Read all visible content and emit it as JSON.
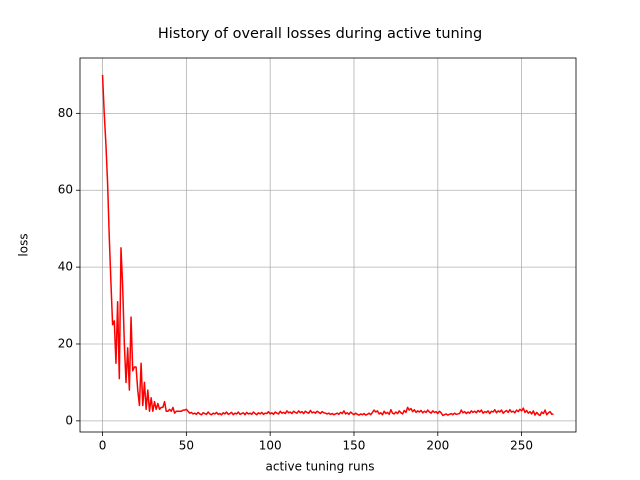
{
  "chart_data": {
    "type": "line",
    "title": "History of overall losses during active tuning",
    "xlabel": "active tuning runs",
    "ylabel": "loss",
    "grid": true,
    "color": "red",
    "xlim": [
      -13.45,
      282.45
    ],
    "xticks": [
      0,
      50,
      100,
      150,
      200,
      250
    ],
    "ylim": [
      -2.9,
      94.4
    ],
    "yticks": [
      0,
      20,
      40,
      60,
      80
    ],
    "x": [
      0,
      1,
      2,
      3,
      4,
      5,
      6,
      7,
      8,
      9,
      10,
      11,
      12,
      13,
      14,
      15,
      16,
      17,
      18,
      19,
      20,
      21,
      22,
      23,
      24,
      25,
      26,
      27,
      28,
      29,
      30,
      31,
      32,
      33,
      34,
      35,
      36,
      37,
      38,
      39,
      40,
      41,
      42,
      43,
      44,
      45,
      46,
      47,
      48,
      49,
      50,
      51,
      52,
      53,
      54,
      55,
      56,
      57,
      58,
      59,
      60,
      61,
      62,
      63,
      64,
      65,
      66,
      67,
      68,
      69,
      70,
      71,
      72,
      73,
      74,
      75,
      76,
      77,
      78,
      79,
      80,
      81,
      82,
      83,
      84,
      85,
      86,
      87,
      88,
      89,
      90,
      91,
      92,
      93,
      94,
      95,
      96,
      97,
      98,
      99,
      100,
      101,
      102,
      103,
      104,
      105,
      106,
      107,
      108,
      109,
      110,
      111,
      112,
      113,
      114,
      115,
      116,
      117,
      118,
      119,
      120,
      121,
      122,
      123,
      124,
      125,
      126,
      127,
      128,
      129,
      130,
      131,
      132,
      133,
      134,
      135,
      136,
      137,
      138,
      139,
      140,
      141,
      142,
      143,
      144,
      145,
      146,
      147,
      148,
      149,
      150,
      151,
      152,
      153,
      154,
      155,
      156,
      157,
      158,
      159,
      160,
      161,
      162,
      163,
      164,
      165,
      166,
      167,
      168,
      169,
      170,
      171,
      172,
      173,
      174,
      175,
      176,
      177,
      178,
      179,
      180,
      181,
      182,
      183,
      184,
      185,
      186,
      187,
      188,
      189,
      190,
      191,
      192,
      193,
      194,
      195,
      196,
      197,
      198,
      199,
      200,
      201,
      202,
      203,
      204,
      205,
      206,
      207,
      208,
      209,
      210,
      211,
      212,
      213,
      214,
      215,
      216,
      217,
      218,
      219,
      220,
      221,
      222,
      223,
      224,
      225,
      226,
      227,
      228,
      229,
      230,
      231,
      232,
      233,
      234,
      235,
      236,
      237,
      238,
      239,
      240,
      241,
      242,
      243,
      244,
      245,
      246,
      247,
      248,
      249,
      250,
      251,
      252,
      253,
      254,
      255,
      256,
      257,
      258,
      259,
      260,
      261,
      262,
      263,
      264,
      265,
      266,
      267,
      268,
      269
    ],
    "values": [
      90,
      80,
      72,
      62,
      48,
      36,
      25,
      26,
      15,
      31,
      11,
      45,
      35,
      20,
      10,
      19,
      8,
      27,
      13,
      14,
      14,
      8,
      4,
      15,
      4,
      10,
      3,
      8,
      2.5,
      6,
      2.5,
      5,
      3,
      4.5,
      3,
      3.5,
      3.5,
      5,
      2.5,
      2.5,
      3,
      2.5,
      3.5,
      2,
      2.5,
      2.5,
      2.5,
      2.5,
      2.8,
      2.8,
      3,
      2.5,
      2,
      2.2,
      1.8,
      2.0,
      1.7,
      2.2,
      1.8,
      1.6,
      2.1,
      1.9,
      1.7,
      2.3,
      1.8,
      1.6,
      2.0,
      1.8,
      2.2,
      1.7,
      1.9,
      1.6,
      2.1,
      1.8,
      2.3,
      1.7,
      1.9,
      2.2,
      1.6,
      2.0,
      1.8,
      2.3,
      1.7,
      1.9,
      2.1,
      1.6,
      2.2,
      1.8,
      2.0,
      1.7,
      2.3,
      1.9,
      1.6,
      2.1,
      1.8,
      2.2,
      1.7,
      2.0,
      1.9,
      2.4,
      1.8,
      2.1,
      1.7,
      2.3,
      2.0,
      1.8,
      2.5,
      2.0,
      2.2,
      1.9,
      2.6,
      2.1,
      2.3,
      1.9,
      2.5,
      2.2,
      2.0,
      2.6,
      2.1,
      2.4,
      1.9,
      2.5,
      2.2,
      2.0,
      2.7,
      2.1,
      2.3,
      2.0,
      2.5,
      2.2,
      1.9,
      2.4,
      2.1,
      2.0,
      1.8,
      2.0,
      1.7,
      1.9,
      1.6,
      1.8,
      2.0,
      1.7,
      2.2,
      1.9,
      2.6,
      1.8,
      2.1,
      1.7,
      2.3,
      1.9,
      1.6,
      2.0,
      1.7,
      1.5,
      1.8,
      1.6,
      1.9,
      1.5,
      1.7,
      2.0,
      1.6,
      2.2,
      2.8,
      2.3,
      2.6,
      1.8,
      2.1,
      1.6,
      2.5,
      1.9,
      2.2,
      1.7,
      2.9,
      2.0,
      1.8,
      2.3,
      1.9,
      2.6,
      2.1,
      1.8,
      2.7,
      2.2,
      3.5,
      2.8,
      3.2,
      2.4,
      2.9,
      2.2,
      2.6,
      2.3,
      2.7,
      2.1,
      2.5,
      2.2,
      2.8,
      2.3,
      2.0,
      2.6,
      2.2,
      2.4,
      1.9,
      2.5,
      2.1,
      1.4,
      1.6,
      1.8,
      1.5,
      1.7,
      1.9,
      1.6,
      2.0,
      1.7,
      1.8,
      1.9,
      2.8,
      2.1,
      2.4,
      1.9,
      2.3,
      2.0,
      2.6,
      2.2,
      2.5,
      2.1,
      2.7,
      2.3,
      2.8,
      2.0,
      2.4,
      2.2,
      2.6,
      1.9,
      2.5,
      2.3,
      2.9,
      2.1,
      2.6,
      2.3,
      2.8,
      2.0,
      2.4,
      2.7,
      2.2,
      2.9,
      2.3,
      2.5,
      2.1,
      2.8,
      2.4,
      3.0,
      2.6,
      3.3,
      2.2,
      2.7,
      2.0,
      2.4,
      1.8,
      2.6,
      1.5,
      2.2,
      1.7,
      1.4,
      2.3,
      1.9,
      2.8,
      1.6,
      2.1,
      2.4,
      1.7,
      1.8
    ]
  }
}
